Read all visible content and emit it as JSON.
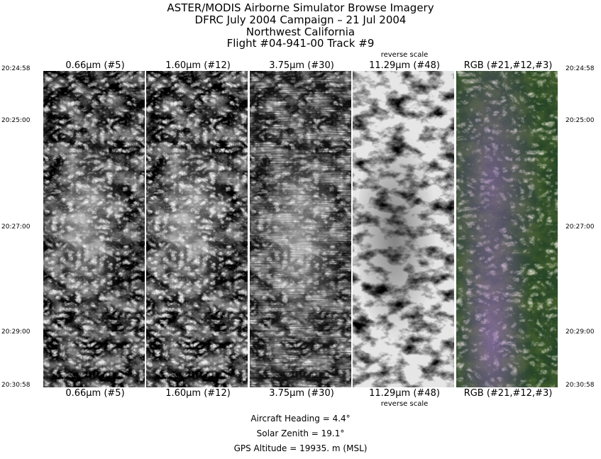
{
  "header": {
    "line1": "ASTER/MODIS Airborne Simulator Browse Imagery",
    "line2": "DFRC July 2004 Campaign – 21 Jul 2004",
    "line3": "Northwest California",
    "line4": "Flight #04-941-00 Track #9"
  },
  "bands": [
    {
      "label": "0.66μm (#5)",
      "reverse": ""
    },
    {
      "label": "1.60μm (#12)",
      "reverse": ""
    },
    {
      "label": "3.75μm (#30)",
      "reverse": ""
    },
    {
      "label": "11.29μm (#48)",
      "reverse": "reverse scale"
    },
    {
      "label": "RGB (#21,#12,#3)",
      "reverse": ""
    }
  ],
  "time_ticks": [
    "20:24:58",
    "20:25:00",
    "20:27:00",
    "20:29:00",
    "20:30:58"
  ],
  "stats": {
    "heading": "Aircraft Heading =     4.4°",
    "zenith": "Solar Zenith =   19.1°",
    "altitude": "GPS Altitude =  19935. m (MSL)"
  },
  "colors": {
    "rgb_vegetation": "#3f5a2c",
    "rgb_purple": "#a070c8",
    "rgb_light": "#d8d8b8"
  }
}
